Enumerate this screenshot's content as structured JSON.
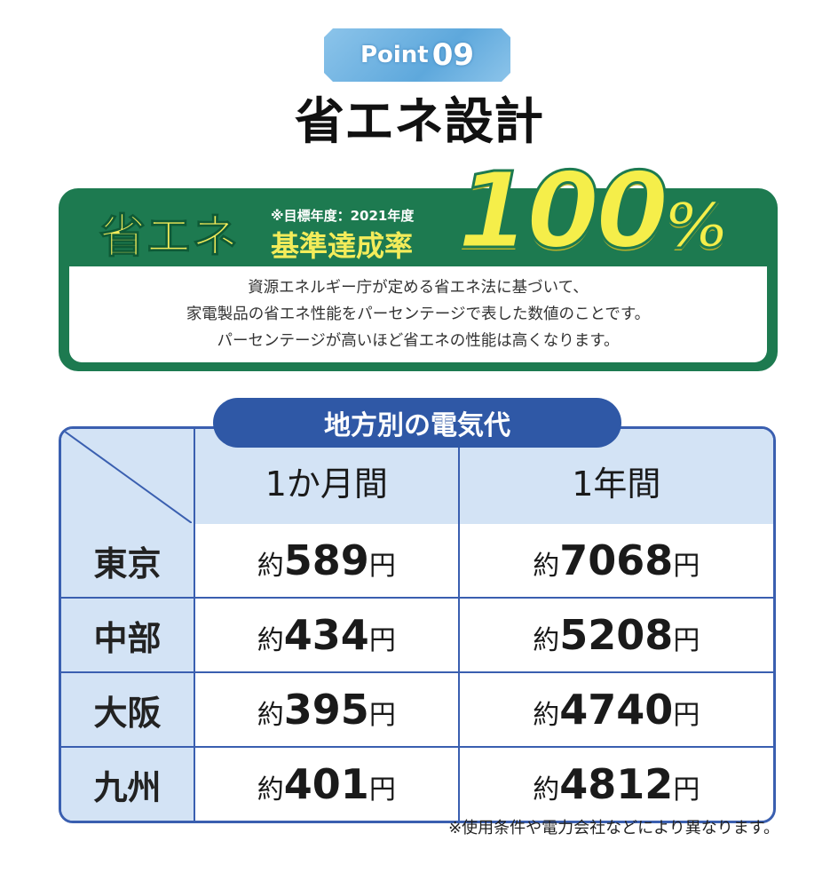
{
  "badge": {
    "label": "Point",
    "number": "09"
  },
  "title": "省エネ設計",
  "energy": {
    "label": "省エネ",
    "target_note": "※目標年度：2021年度",
    "sublabel": "基準達成率",
    "rate_value": "100",
    "rate_unit": "%",
    "description": [
      "資源エネルギー庁が定める省エネ法に基づいて、",
      "家電製品の省エネ性能をパーセンテージで表した数値のことです。",
      "パーセンテージが高いほど省エネの性能は高くなります。"
    ],
    "colors": {
      "green": "#1d7a50",
      "yellow": "#f5ee4a"
    }
  },
  "table": {
    "title": "地方別の電気代",
    "columns": [
      "1か月間",
      "1年間"
    ],
    "prefix": "約",
    "unit": "円",
    "rows": [
      {
        "region": "東京",
        "monthly": "589",
        "yearly": "7068"
      },
      {
        "region": "中部",
        "monthly": "434",
        "yearly": "5208"
      },
      {
        "region": "大阪",
        "monthly": "395",
        "yearly": "4740"
      },
      {
        "region": "九州",
        "monthly": "401",
        "yearly": "4812"
      }
    ],
    "colors": {
      "border": "#3a5fb0",
      "header_bg": "#d3e3f5",
      "pill": "#2f58a6"
    }
  },
  "footnote": "※使用条件や電力会社などにより異なります。"
}
